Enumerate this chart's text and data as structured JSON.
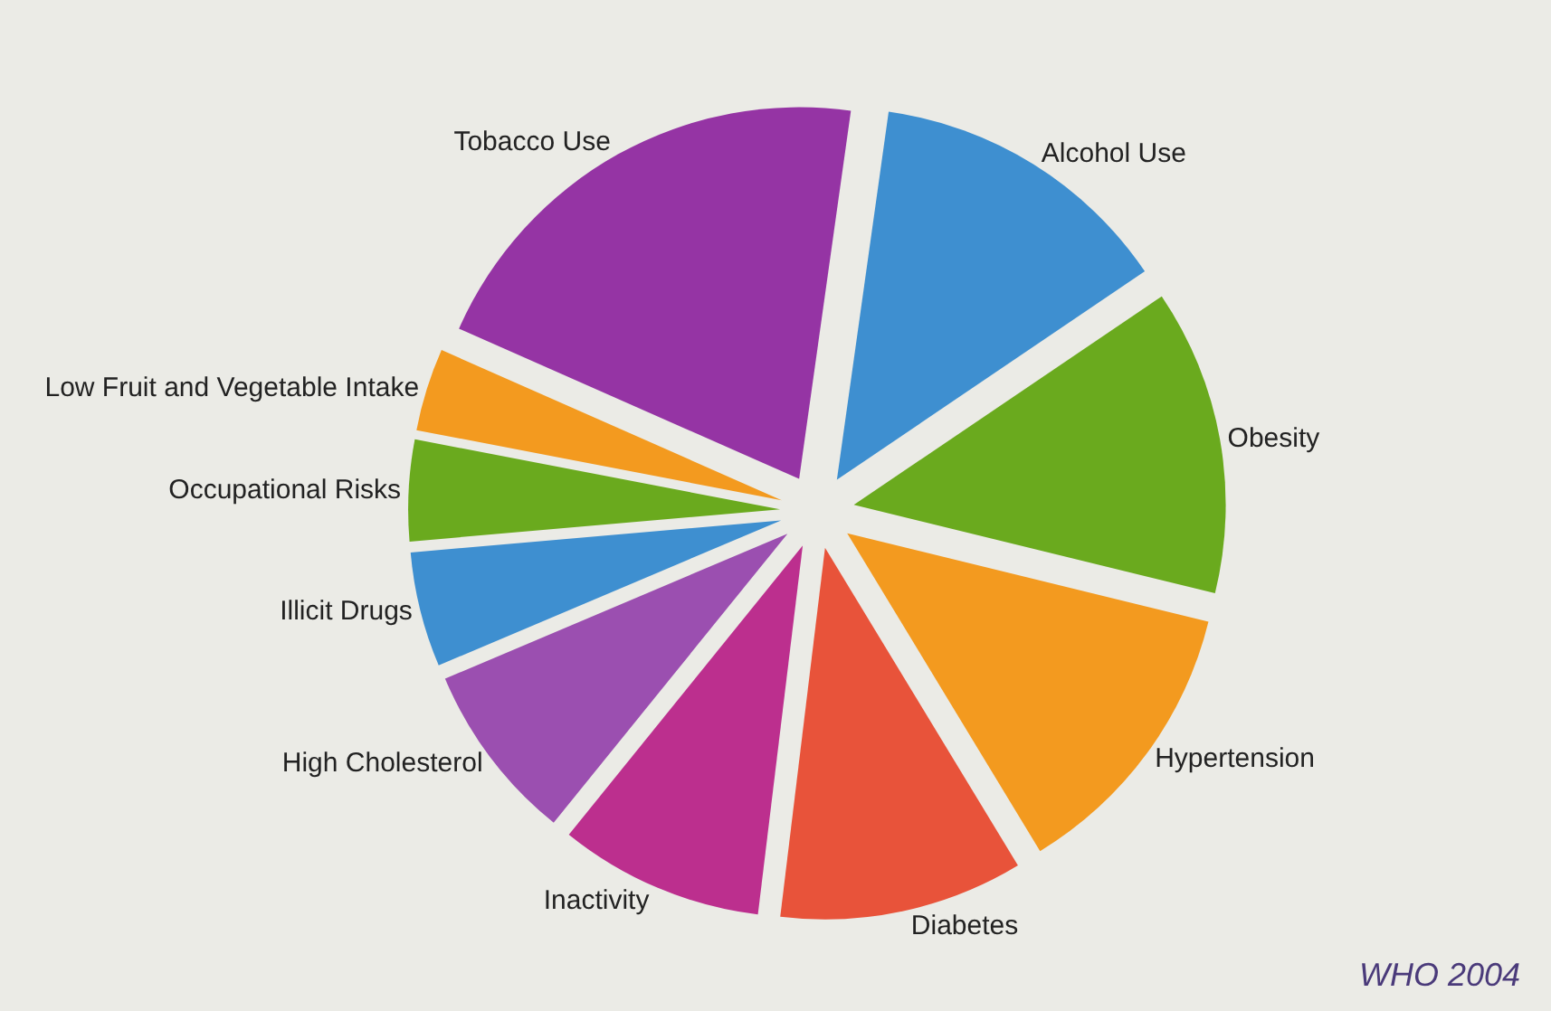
{
  "chart_data": {
    "type": "pie",
    "categories": [
      "Alcohol Use",
      "Obesity",
      "Hypertension",
      "Diabetes",
      "Inactivity",
      "High Cholesterol",
      "Illicit Drugs",
      "Occupational Risks",
      "Low Fruit and Vegetable Intake",
      "Tobacco Use"
    ],
    "values": [
      13.3,
      13.3,
      12.5,
      10.6,
      8.9,
      7.8,
      5,
      4.4,
      3.6,
      20.6
    ],
    "colors": [
      "#3e8fd0",
      "#6aaa1e",
      "#f39a1f",
      "#e8533a",
      "#bc2f8e",
      "#9b4fb0",
      "#3e8fd0",
      "#6aaa1e",
      "#f39a1f",
      "#9534a4"
    ],
    "annotations": [
      "WHO 2004"
    ]
  }
}
